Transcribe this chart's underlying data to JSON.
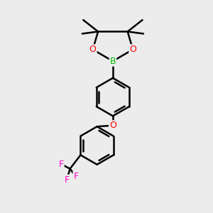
{
  "background_color": "#ececec",
  "bond_color": "#000000",
  "bond_width": 1.8,
  "atom_colors": {
    "B": "#00bb00",
    "O": "#ff0000",
    "F": "#ff00cc",
    "C": "#000000"
  },
  "figsize": [
    3.0,
    3.0
  ],
  "dpi": 100,
  "xlim": [
    0,
    10
  ],
  "ylim": [
    0,
    10
  ]
}
